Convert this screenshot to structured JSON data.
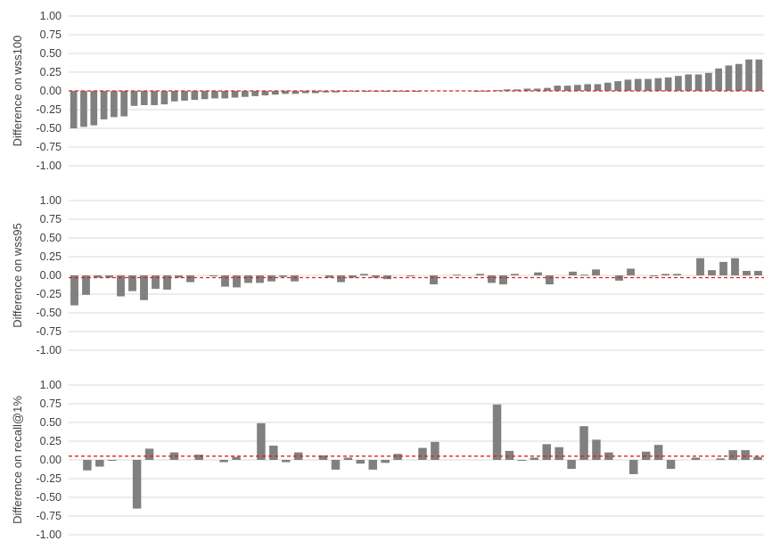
{
  "chart_data": [
    {
      "type": "bar",
      "ylabel": "Difference on wss100",
      "ylim": [
        -1.0,
        1.0
      ],
      "yticks": [
        "1.00",
        "0.75",
        "0.50",
        "0.25",
        "0.00",
        "-0.25",
        "-0.50",
        "-0.75",
        "-1.00"
      ],
      "grid": true,
      "bar_color": "#808080",
      "reference_line": {
        "value": 0.0,
        "color": "#e02020",
        "style": "dashed"
      },
      "values": [
        -0.5,
        -0.48,
        -0.46,
        -0.38,
        -0.35,
        -0.34,
        -0.2,
        -0.19,
        -0.19,
        -0.18,
        -0.14,
        -0.13,
        -0.12,
        -0.11,
        -0.1,
        -0.1,
        -0.09,
        -0.08,
        -0.07,
        -0.06,
        -0.05,
        -0.04,
        -0.04,
        -0.03,
        -0.03,
        -0.02,
        -0.02,
        -0.01,
        -0.01,
        -0.01,
        -0.005,
        -0.005,
        -0.003,
        -0.002,
        -0.001,
        0.0,
        0.0,
        0.0,
        0.0,
        0.0,
        0.001,
        0.002,
        0.01,
        0.02,
        0.02,
        0.03,
        0.03,
        0.04,
        0.07,
        0.07,
        0.08,
        0.09,
        0.09,
        0.11,
        0.13,
        0.15,
        0.16,
        0.16,
        0.17,
        0.18,
        0.2,
        0.22,
        0.22,
        0.24,
        0.3,
        0.34,
        0.36,
        0.42,
        0.42
      ]
    },
    {
      "type": "bar",
      "ylabel": "Difference on wss95",
      "ylim": [
        -1.0,
        1.0
      ],
      "yticks": [
        "1.00",
        "0.75",
        "0.50",
        "0.25",
        "0.00",
        "-0.25",
        "-0.50",
        "-0.75",
        "-1.00"
      ],
      "grid": true,
      "bar_color": "#808080",
      "reference_line": {
        "value": -0.03,
        "color": "#e02020",
        "style": "dashed"
      },
      "values": [
        -0.4,
        -0.26,
        -0.03,
        -0.03,
        -0.28,
        -0.21,
        -0.33,
        -0.18,
        -0.19,
        -0.03,
        -0.09,
        0.0,
        -0.01,
        -0.15,
        -0.16,
        -0.1,
        -0.1,
        -0.08,
        -0.02,
        -0.08,
        0.0,
        0.0,
        -0.03,
        -0.09,
        -0.03,
        0.02,
        -0.03,
        -0.05,
        0.0,
        -0.01,
        0.0,
        -0.12,
        0.0,
        0.01,
        0.0,
        0.02,
        -0.1,
        -0.12,
        0.02,
        0.0,
        0.04,
        -0.12,
        0.0,
        0.05,
        0.01,
        0.08,
        0.0,
        -0.07,
        0.09,
        0.0,
        -0.01,
        0.02,
        0.02,
        0.0,
        0.23,
        0.07,
        0.18,
        0.23,
        0.06,
        0.06
      ]
    },
    {
      "type": "bar",
      "ylabel": "Difference on recall@1%",
      "ylim": [
        -1.0,
        1.0
      ],
      "yticks": [
        "1.00",
        "0.75",
        "0.50",
        "0.25",
        "0.00",
        "-0.25",
        "-0.50",
        "-0.75",
        "-1.00"
      ],
      "grid": true,
      "bar_color": "#808080",
      "reference_line": {
        "value": 0.05,
        "color": "#e02020",
        "style": "dashed"
      },
      "values": [
        0.0,
        -0.14,
        -0.09,
        -0.01,
        0.0,
        -0.65,
        0.15,
        0.0,
        0.1,
        0.0,
        0.07,
        0.0,
        -0.03,
        0.04,
        0.0,
        0.49,
        0.19,
        -0.03,
        0.1,
        0.0,
        0.06,
        -0.13,
        0.03,
        -0.05,
        -0.13,
        -0.04,
        0.08,
        0.0,
        0.16,
        0.24,
        0.0,
        0.0,
        0.0,
        0.0,
        0.74,
        0.12,
        -0.01,
        0.03,
        0.21,
        0.17,
        -0.12,
        0.45,
        0.27,
        0.1,
        0.0,
        -0.19,
        0.11,
        0.2,
        -0.12,
        0.0,
        0.03,
        0.0,
        0.02,
        0.13,
        0.13,
        0.04
      ]
    }
  ]
}
